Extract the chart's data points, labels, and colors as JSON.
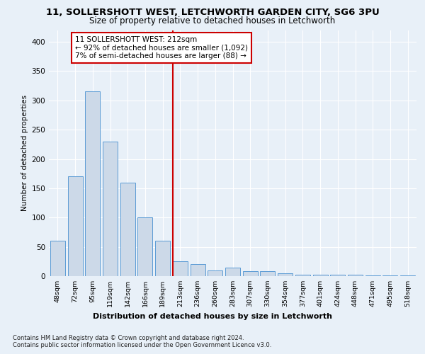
{
  "title_line1": "11, SOLLERSHOTT WEST, LETCHWORTH GARDEN CITY, SG6 3PU",
  "title_line2": "Size of property relative to detached houses in Letchworth",
  "xlabel": "Distribution of detached houses by size in Letchworth",
  "ylabel": "Number of detached properties",
  "bar_labels": [
    "48sqm",
    "72sqm",
    "95sqm",
    "119sqm",
    "142sqm",
    "166sqm",
    "189sqm",
    "213sqm",
    "236sqm",
    "260sqm",
    "283sqm",
    "307sqm",
    "330sqm",
    "354sqm",
    "377sqm",
    "401sqm",
    "424sqm",
    "448sqm",
    "471sqm",
    "495sqm",
    "518sqm"
  ],
  "bar_values": [
    60,
    170,
    315,
    230,
    160,
    100,
    60,
    25,
    20,
    10,
    15,
    8,
    8,
    5,
    3,
    2,
    2,
    2,
    1,
    1,
    1
  ],
  "bar_color": "#ccd9e8",
  "bar_edge_color": "#5b9bd5",
  "vline_color": "#cc0000",
  "annotation_text": "11 SOLLERSHOTT WEST: 212sqm\n← 92% of detached houses are smaller (1,092)\n7% of semi-detached houses are larger (88) →",
  "annotation_box_color": "#ffffff",
  "annotation_box_edge": "#cc0000",
  "ylim": [
    0,
    420
  ],
  "yticks": [
    0,
    50,
    100,
    150,
    200,
    250,
    300,
    350,
    400
  ],
  "footer_line1": "Contains HM Land Registry data © Crown copyright and database right 2024.",
  "footer_line2": "Contains public sector information licensed under the Open Government Licence v3.0.",
  "bg_color": "#e8f0f8",
  "plot_bg_color": "#e8f0f8"
}
